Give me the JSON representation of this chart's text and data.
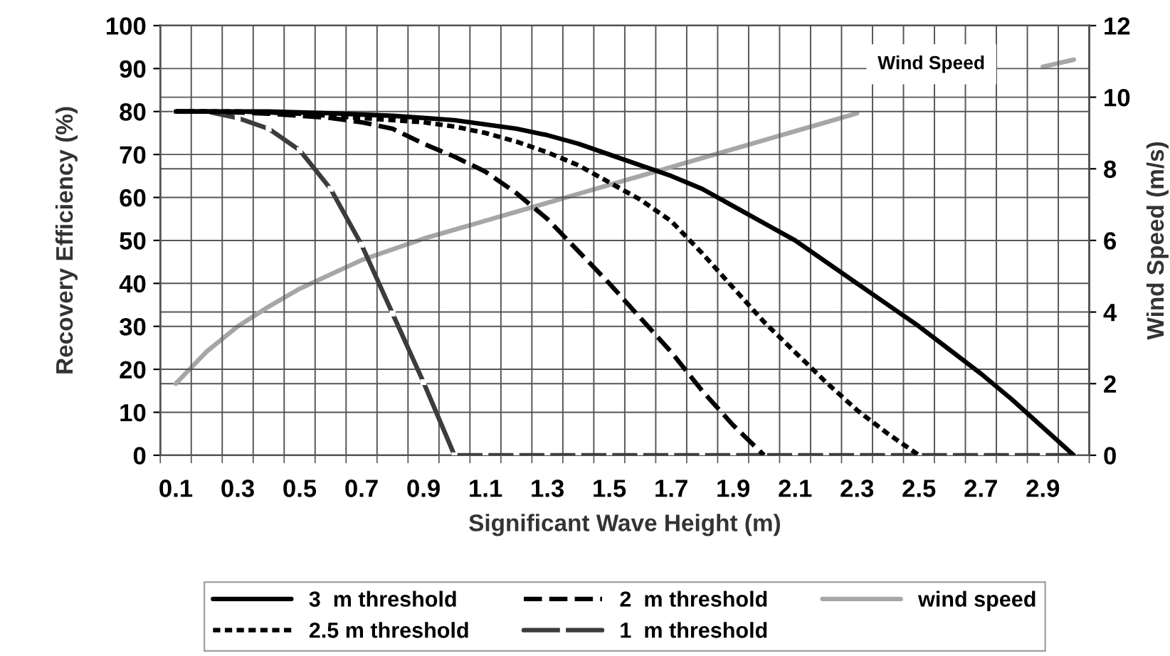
{
  "chart_data": {
    "type": "line",
    "xlabel": "Significant Wave Height (m)",
    "ylabel": "Recovery Efficiency (%)",
    "y2label": "Wind Speed (m/s)",
    "categories": [
      "0.1",
      null,
      "0.3",
      null,
      "0.5",
      null,
      "0.7",
      null,
      "0.9",
      null,
      "1.1",
      null,
      "1.3",
      null,
      "1.5",
      null,
      "1.7",
      null,
      "1.9",
      null,
      "2.1",
      null,
      "2.3",
      null,
      "2.5",
      null,
      "2.7",
      null,
      "2.9",
      null
    ],
    "series": [
      {
        "name": "3  m threshold",
        "color": "#000000",
        "line_style": "solid",
        "marker": "none",
        "values": [
          80,
          80,
          80,
          80,
          79.8,
          79.6,
          79.3,
          79,
          78.5,
          78,
          77,
          76,
          74.5,
          72.5,
          70,
          67.5,
          65,
          62,
          58,
          54,
          50,
          45,
          40,
          35,
          30,
          24.5,
          19,
          13,
          6.5,
          0
        ]
      },
      {
        "name": "2.5 m threshold",
        "color": "#000000",
        "line_style": "dotted",
        "marker": "none",
        "values": [
          80,
          80,
          80,
          79.8,
          79.5,
          79,
          78.5,
          78,
          77.5,
          76.5,
          75,
          73,
          70.5,
          67.5,
          63.5,
          59.5,
          54.5,
          47,
          39,
          31,
          24,
          17,
          10.5,
          5,
          0,
          null,
          null,
          null,
          null,
          null
        ]
      },
      {
        "name": "2  m threshold",
        "color": "#000000",
        "line_style": "dashed",
        "marker": "none",
        "values": [
          80,
          80,
          79.8,
          79.5,
          79,
          78.5,
          77.5,
          76,
          72.5,
          69.5,
          66,
          61,
          55,
          47.5,
          40,
          32,
          24,
          15,
          7,
          0,
          null,
          null,
          null,
          null,
          null,
          null,
          null,
          null,
          null,
          null
        ]
      },
      {
        "name": "1  m threshold",
        "color": "#3c3c3c",
        "line_style": "solid",
        "marker": "square",
        "values": [
          80,
          80,
          78.5,
          76,
          71,
          62,
          49,
          33,
          17,
          0,
          0,
          0,
          0,
          0,
          0,
          0,
          0,
          0,
          0,
          0,
          0,
          0,
          0,
          0,
          0,
          0,
          0,
          0,
          0,
          0
        ]
      },
      {
        "name": "wind speed",
        "color": "#a6a6a6",
        "line_style": "solid",
        "marker": "none",
        "axis": "y2",
        "values": [
          2.0,
          2.9,
          3.6,
          4.15,
          4.65,
          5.05,
          5.45,
          5.75,
          6.05,
          6.3,
          6.55,
          6.8,
          7.05,
          7.3,
          7.55,
          7.8,
          8.05,
          8.3,
          8.55,
          8.8,
          9.05,
          9.3,
          9.55,
          null,
          null,
          null,
          null,
          null,
          10.85,
          11.05
        ]
      }
    ],
    "ylim": [
      0,
      100
    ],
    "yticks": [
      0,
      10,
      20,
      30,
      40,
      50,
      60,
      70,
      80,
      90,
      100
    ],
    "y2lim": [
      0,
      12
    ],
    "y2ticks": [
      0,
      2,
      4,
      6,
      8,
      10,
      12
    ],
    "annotations": [
      "Wind Speed"
    ],
    "grid": true,
    "legend": "bottom"
  }
}
